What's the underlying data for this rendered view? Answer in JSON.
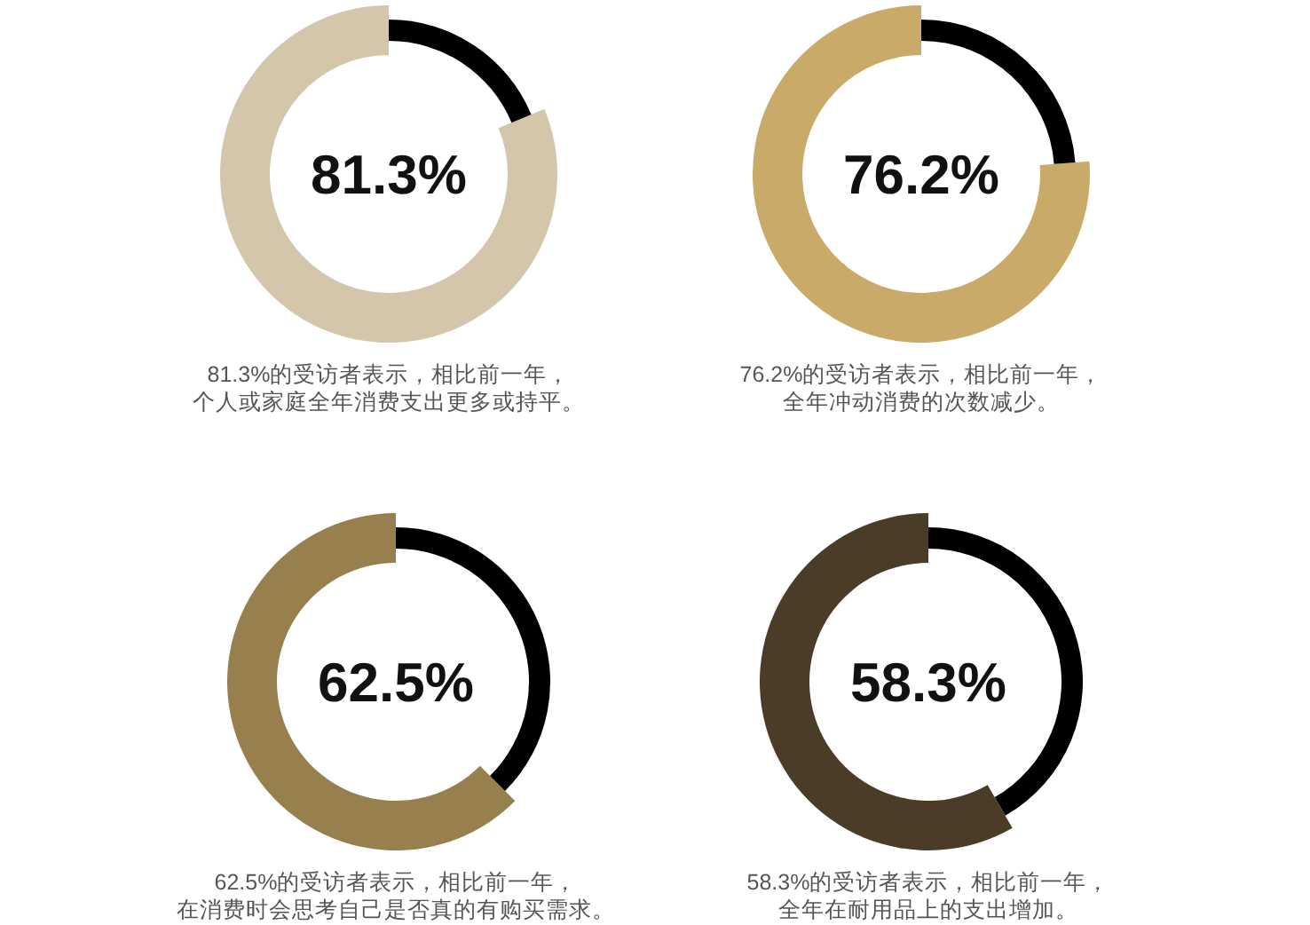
{
  "chart_data": [
    {
      "type": "donut",
      "categories": [
        null,
        null
      ],
      "values": [
        81.3,
        18.7
      ],
      "colors": [
        "#d3c6ab",
        "#000000"
      ],
      "value_labels": [
        "81.3%",
        null
      ],
      "annotations": [
        "81.3%的受访者表示，相比前一年，",
        "个人或家庭全年消费支出更多或持平。"
      ]
    },
    {
      "type": "donut",
      "categories": [
        null,
        null
      ],
      "values": [
        76.2,
        23.8
      ],
      "colors": [
        "#c9aa68",
        "#000000"
      ],
      "value_labels": [
        "76.2%",
        null
      ],
      "annotations": [
        "76.2%的受访者表示，相比前一年，",
        "全年冲动消费的次数减少。"
      ]
    },
    {
      "type": "donut",
      "categories": [
        null,
        null
      ],
      "values": [
        62.5,
        37.5
      ],
      "colors": [
        "#977f4e",
        "#000000"
      ],
      "value_labels": [
        "62.5%",
        null
      ],
      "annotations": [
        "62.5%的受访者表示，相比前一年，",
        "在消费时会思考自己是否真的有购买需求。"
      ]
    },
    {
      "type": "donut",
      "categories": [
        null,
        null
      ],
      "values": [
        58.3,
        41.7
      ],
      "colors": [
        "#4a3c27",
        "#000000"
      ],
      "value_labels": [
        "58.3%",
        null
      ],
      "annotations": [
        "58.3%的受访者表示，相比前一年，",
        "全年在耐用品上的支出增加。"
      ]
    }
  ]
}
